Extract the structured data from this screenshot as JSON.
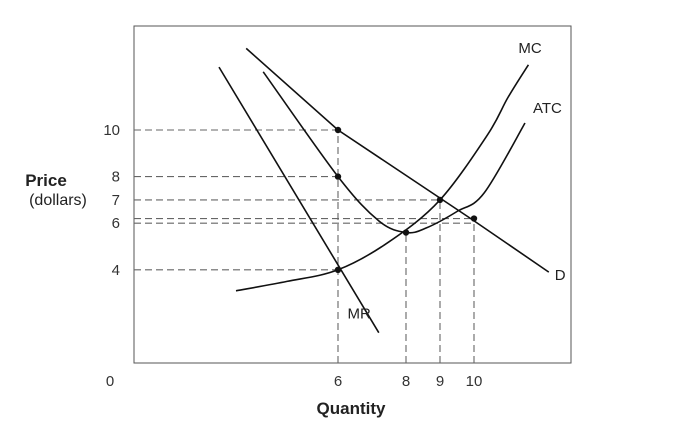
{
  "chart_data": {
    "type": "line",
    "title": "",
    "xlabel": "Quantity",
    "ylabel": "Price",
    "ylabel_sub": "(dollars)",
    "origin_label": "0",
    "xlim": [
      0,
      13
    ],
    "ylim": [
      0,
      14.5
    ],
    "grid": false,
    "legend": "none",
    "x_ticks": [
      {
        "value": 6,
        "label": "6"
      },
      {
        "value": 8,
        "label": "8"
      },
      {
        "value": 9,
        "label": "9"
      },
      {
        "value": 10,
        "label": "10"
      }
    ],
    "y_ticks": [
      {
        "value": 10,
        "label": "10"
      },
      {
        "value": 8,
        "label": "8"
      },
      {
        "value": 7,
        "label": "7"
      },
      {
        "value": 6,
        "label": "6"
      },
      {
        "value": 4,
        "label": "4"
      }
    ],
    "series": [
      {
        "name": "D",
        "type": "straight",
        "points": [
          [
            3.3,
            13.5
          ],
          [
            6,
            10
          ],
          [
            9.9,
            6.2
          ],
          [
            12.2,
            3.9
          ]
        ]
      },
      {
        "name": "MR",
        "type": "straight",
        "points": [
          [
            2.5,
            12.7
          ],
          [
            7.2,
            1.3
          ]
        ]
      },
      {
        "name": "ATC",
        "type": "curve",
        "points": [
          [
            3.8,
            12.5
          ],
          [
            6,
            8
          ],
          [
            7.2,
            6.1
          ],
          [
            8,
            5.6
          ],
          [
            8.6,
            5.8
          ],
          [
            9.5,
            6.5
          ],
          [
            10.3,
            7.3
          ],
          [
            11.5,
            10.3
          ]
        ]
      },
      {
        "name": "MC",
        "type": "curve",
        "points": [
          [
            3,
            3.1
          ],
          [
            4.5,
            3.5
          ],
          [
            6,
            4
          ],
          [
            7.5,
            5.2
          ],
          [
            9,
            7
          ],
          [
            10.4,
            9.8
          ],
          [
            11,
            11.4
          ],
          [
            11.6,
            12.8
          ]
        ]
      }
    ],
    "points": [
      {
        "x": 6,
        "y": 10
      },
      {
        "x": 6,
        "y": 8
      },
      {
        "x": 6,
        "y": 4
      },
      {
        "x": 8,
        "y": 5.6
      },
      {
        "x": 9,
        "y": 7
      },
      {
        "x": 10,
        "y": 6.2
      }
    ],
    "guides": [
      {
        "y": 10,
        "x": 6
      },
      {
        "y": 8,
        "x": 6
      },
      {
        "y": 7,
        "x": 9
      },
      {
        "y": 6.2,
        "x": 10
      },
      {
        "y": 6,
        "x": 10
      },
      {
        "y": 4,
        "x": 6
      },
      {
        "x": 6,
        "y": 10
      },
      {
        "x": 8,
        "y": 5.6
      },
      {
        "x": 9,
        "y": 7
      },
      {
        "x": 10,
        "y": 6.2
      }
    ],
    "labels": [
      {
        "text": "MC",
        "series": "MC"
      },
      {
        "text": "ATC",
        "series": "ATC"
      },
      {
        "text": "D",
        "series": "D"
      },
      {
        "text": "MR",
        "series": "MR"
      }
    ]
  }
}
